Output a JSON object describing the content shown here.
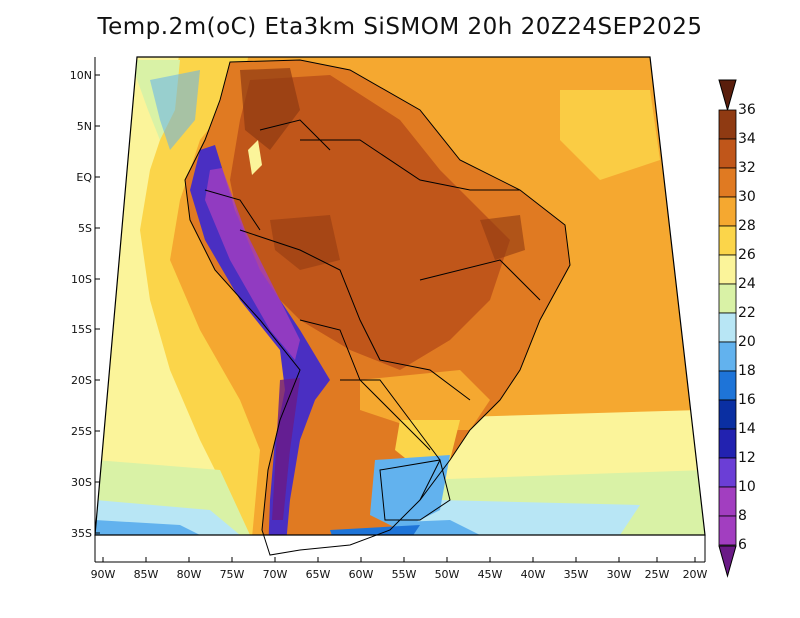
{
  "title": "Temp.2m(oC) Eta3km SiSMOM 20h 20Z24SEP2025",
  "lat_labels": [
    "10N",
    "5N",
    "EQ",
    "5S",
    "10S",
    "15S",
    "20S",
    "25S",
    "30S",
    "35S"
  ],
  "lon_labels": [
    "90W",
    "85W",
    "80W",
    "75W",
    "70W",
    "65W",
    "60W",
    "55W",
    "50W",
    "45W",
    "40W",
    "35W",
    "30W",
    "25W",
    "20W"
  ],
  "colorbar": {
    "labels": [
      "36",
      "34",
      "32",
      "30",
      "28",
      "26",
      "24",
      "22",
      "20",
      "18",
      "16",
      "14",
      "12",
      "10",
      "8",
      "6"
    ],
    "colors": [
      "#5a1e0c",
      "#8f3a12",
      "#c0561a",
      "#e07a22",
      "#f5a830",
      "#fbd54a",
      "#fbf49a",
      "#d9f2a6",
      "#b8e6f5",
      "#62b2ee",
      "#1e74d8",
      "#0a2fa2",
      "#2222b0",
      "#6b3ed6",
      "#a23ec0",
      "#6a1a86"
    ]
  },
  "colors": {
    "ocean_warm": "#f5a830",
    "ocean_mid": "#fbd54a",
    "ocean_light": "#fbf49a",
    "ocean_cool": "#d9f2a6",
    "land_hot": "#e07a22",
    "land_very_hot": "#c0561a",
    "land_extreme": "#8f3a12",
    "andes_cold": "#4a2fc2",
    "south_cool": "#62b2ee"
  }
}
